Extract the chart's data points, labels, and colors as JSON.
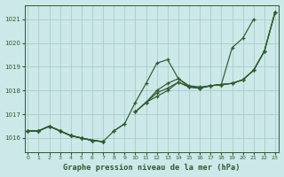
{
  "title": "Graphe pression niveau de la mer (hPa)",
  "background_color": "#cce8e8",
  "grid_color": "#aacccc",
  "line_color": "#2d5a2d",
  "xlim": [
    -0.3,
    23.3
  ],
  "ylim": [
    1015.4,
    1021.6
  ],
  "yticks": [
    1016,
    1017,
    1018,
    1019,
    1020,
    1021
  ],
  "xticks": [
    0,
    1,
    2,
    3,
    4,
    5,
    6,
    7,
    8,
    9,
    10,
    11,
    12,
    13,
    14,
    15,
    16,
    17,
    18,
    19,
    20,
    21,
    22,
    23
  ],
  "series": [
    [
      1016.3,
      1016.3,
      1016.5,
      1016.3,
      1016.1,
      1016.0,
      1015.9,
      1015.85,
      null,
      null,
      null,
      null,
      null,
      null,
      null,
      null,
      null,
      null,
      null,
      null,
      null,
      null,
      null,
      null
    ],
    [
      null,
      null,
      null,
      null,
      null,
      null,
      null,
      null,
      1016.3,
      1016.6,
      null,
      null,
      null,
      null,
      null,
      null,
      null,
      null,
      null,
      null,
      null,
      null,
      null,
      null
    ],
    [
      1016.3,
      1016.3,
      1016.5,
      1016.3,
      1016.1,
      1016.0,
      1015.9,
      1015.85,
      1016.3,
      1016.6,
      1017.5,
      1018.3,
      1019.15,
      1019.3,
      1018.5,
      1018.2,
      1018.15,
      1018.2,
      1018.25,
      1019.8,
      1020.2,
      1021.0,
      null,
      null
    ],
    [
      1016.3,
      1016.3,
      1016.5,
      1016.3,
      1016.1,
      1016.0,
      1015.9,
      1015.85,
      null,
      null,
      1017.1,
      1017.5,
      1017.75,
      1018.0,
      1018.35,
      1018.15,
      1018.1,
      1018.2,
      1018.25,
      1018.3,
      1018.45,
      1018.85,
      1019.65,
      1021.3
    ],
    [
      1016.3,
      1016.3,
      1016.5,
      1016.3,
      1016.1,
      1016.0,
      1015.9,
      1015.85,
      null,
      null,
      1017.1,
      1017.5,
      1017.9,
      1018.1,
      1018.35,
      1018.15,
      1018.1,
      1018.2,
      1018.25,
      1018.3,
      1018.45,
      1018.85,
      1019.65,
      1021.3
    ],
    [
      1016.3,
      1016.3,
      1016.5,
      1016.3,
      1016.1,
      1016.0,
      1015.9,
      1015.85,
      null,
      null,
      1017.1,
      1017.5,
      1018.0,
      1018.3,
      1018.5,
      1018.15,
      1018.1,
      1018.2,
      1018.25,
      1018.3,
      1018.45,
      1018.85,
      1019.65,
      1021.3
    ]
  ]
}
